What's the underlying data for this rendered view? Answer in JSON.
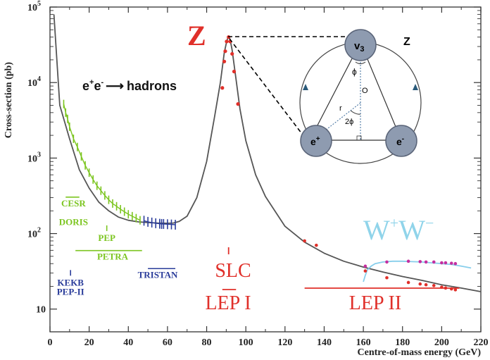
{
  "chart_data": {
    "type": "line",
    "xlabel": "Centre-of-mass energy (GeV)",
    "ylabel": "Cross-section (pb)",
    "xlim": [
      0,
      220
    ],
    "ylim": [
      5,
      100000
    ],
    "yscale": "log",
    "x_ticks": [
      0,
      20,
      40,
      60,
      80,
      100,
      120,
      140,
      160,
      180,
      200,
      220
    ],
    "y_ticks": [
      {
        "value": 10,
        "base": "10",
        "exp": ""
      },
      {
        "value": 100,
        "base": "10",
        "exp": "2"
      },
      {
        "value": 1000,
        "base": "10",
        "exp": "3"
      },
      {
        "value": 10000,
        "base": "10",
        "exp": "4"
      },
      {
        "value": 100000,
        "base": "10",
        "exp": "5"
      }
    ],
    "process_label": {
      "lhs": "e",
      "lhs_sup1": "+",
      "lhs_mid": "e",
      "lhs_sup2": "-",
      "arrow": "⟶",
      "rhs": "hadrons"
    },
    "series": [
      {
        "key": "theory_hadrons",
        "x": [
          2,
          5,
          10,
          15,
          20,
          25,
          30,
          35,
          40,
          45,
          50,
          55,
          60,
          63,
          66,
          70,
          75,
          80,
          84,
          87,
          89,
          90,
          90.5,
          91,
          91.2,
          91.5,
          92,
          93,
          95,
          97,
          100,
          105,
          110,
          120,
          130,
          140,
          150,
          160,
          170,
          180,
          190,
          200,
          210,
          220
        ],
        "y": [
          80000,
          5000,
          1800,
          700,
          400,
          260,
          200,
          165,
          150,
          143,
          140,
          138,
          137,
          138,
          145,
          170,
          300,
          900,
          3500,
          10000,
          25000,
          33000,
          37000,
          40000,
          41000,
          40000,
          37000,
          27000,
          11000,
          4500,
          1700,
          600,
          310,
          125,
          77,
          55,
          43,
          36,
          31,
          27,
          24,
          21,
          19,
          17
        ]
      },
      {
        "key": "theory_ww",
        "x": [
          160,
          161,
          162,
          164,
          166,
          170,
          175,
          180,
          185,
          190,
          195,
          200,
          205,
          210,
          215
        ],
        "y": [
          23,
          28,
          33,
          37,
          40,
          42,
          43,
          43,
          42.5,
          42,
          41,
          40,
          39,
          37,
          35
        ]
      },
      {
        "key": "data_green",
        "x": [
          7,
          8,
          9,
          10,
          12,
          14,
          16,
          18,
          20,
          22,
          24,
          26,
          28,
          30,
          32,
          34,
          36,
          38,
          40,
          42,
          44,
          46
        ],
        "y": [
          5200,
          4000,
          3300,
          2600,
          1800,
          1400,
          1050,
          800,
          640,
          520,
          430,
          370,
          320,
          280,
          250,
          230,
          210,
          195,
          180,
          170,
          160,
          150
        ]
      },
      {
        "key": "data_blue",
        "x": [
          48,
          50,
          52,
          54,
          56,
          57,
          58,
          60,
          62,
          64
        ],
        "y": [
          148,
          143,
          140,
          137,
          135,
          134,
          134,
          133,
          132,
          131
        ]
      },
      {
        "key": "data_red_z",
        "x": [
          88,
          89,
          89.5,
          90.2,
          91.2,
          92,
          93,
          94,
          96
        ],
        "y": [
          8500,
          19000,
          26000,
          35000,
          40000,
          35000,
          24000,
          14000,
          5200
        ]
      },
      {
        "key": "data_red_lep2",
        "x": [
          130,
          136,
          161,
          172,
          183,
          189,
          192,
          196,
          200,
          202,
          205,
          207
        ],
        "y": [
          80,
          70,
          32,
          26,
          22.5,
          21.5,
          21,
          20.5,
          19.5,
          19,
          18.5,
          18
        ]
      },
      {
        "key": "data_ww",
        "x": [
          161,
          172,
          183,
          189,
          192,
          196,
          200,
          202,
          205,
          207
        ],
        "y": [
          37,
          42,
          43,
          42.5,
          42,
          42,
          41,
          41,
          40.5,
          40
        ]
      }
    ],
    "colors": {
      "curve": "#555555",
      "ww_curve": "#87ceeb",
      "green": "#7cc520",
      "blue": "#2a3c9a",
      "red": "#e0302a",
      "magenta": "#c42fa0",
      "ww_label": "#90d4ea",
      "node": "#8e9bb0",
      "node_edge": "#5a6478"
    },
    "experiments": [
      {
        "key": "cesr",
        "label": "CESR",
        "color": "#7cc520",
        "x": 12,
        "y": 230,
        "underline": true,
        "from": 8,
        "to": 15
      },
      {
        "key": "doris",
        "label": "DORIS",
        "color": "#7cc520",
        "x": 12,
        "y": 130,
        "underline": false
      },
      {
        "key": "pep",
        "label": "PEP",
        "color": "#7cc520",
        "x": 29,
        "y": 80,
        "marker": true
      },
      {
        "key": "petra",
        "label": "PETRA",
        "color": "#7cc520",
        "x": 32,
        "y": 45,
        "range": [
          13,
          47
        ]
      },
      {
        "key": "tristan",
        "label": "TRISTAN",
        "color": "#2a3c9a",
        "x": 55,
        "y": 26,
        "range": [
          50,
          64
        ]
      },
      {
        "key": "kekb",
        "label": "KEKB",
        "color": "#2a3c9a",
        "x": 10.5,
        "y": 20.5,
        "marker": true
      },
      {
        "key": "pep2",
        "label": "PEP-II",
        "color": "#2a3c9a",
        "x": 10.5,
        "y": 15.5
      }
    ],
    "big_labels": {
      "z": "Z",
      "slc": "SLC",
      "lep1": "LEP I",
      "lep2": "LEP II",
      "ww_main": "W",
      "ww_sup1": "+",
      "ww_mid": "W",
      "ww_sup2": "−"
    },
    "lep2_range": [
      130,
      209
    ],
    "lep1_range": [
      88,
      95
    ],
    "inset": {
      "corner_label": "Z",
      "top_node": "v",
      "top_node_sub": "3",
      "left_node": "e",
      "left_node_sup": "+",
      "right_node": "e",
      "right_node_sup": "-",
      "phi": "ϕ",
      "two_phi": "2ϕ",
      "radius": "r",
      "center": "O"
    }
  }
}
